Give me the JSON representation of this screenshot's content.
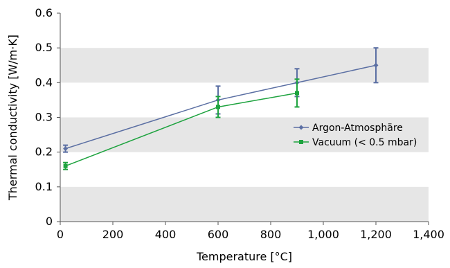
{
  "chart_data": {
    "type": "line",
    "xlabel": "Temperature [°C]",
    "ylabel": "Thermal conductivity [W/m·K]",
    "xlim": [
      0,
      1400
    ],
    "ylim": [
      0,
      0.6
    ],
    "x_ticks": [
      0,
      200,
      400,
      600,
      800,
      1000,
      1200,
      1400
    ],
    "x_tick_labels": [
      "0",
      "200",
      "400",
      "600",
      "800",
      "1,000",
      "1,200",
      "1,400"
    ],
    "y_ticks": [
      0,
      0.1,
      0.2,
      0.3,
      0.4,
      0.5,
      0.6
    ],
    "y_tick_labels": [
      "0",
      "0.1",
      "0.2",
      "0.3",
      "0.4",
      "0.5",
      "0.6"
    ],
    "grid": "alternating horizontal bands",
    "legend_position": "center-right",
    "series": [
      {
        "name": "Argon-Atmosphäre",
        "color": "#5b6fa3",
        "marker": "diamond",
        "x": [
          20,
          600,
          900,
          1200
        ],
        "y": [
          0.21,
          0.35,
          0.4,
          0.45
        ],
        "error": [
          0.01,
          0.04,
          0.04,
          0.05
        ]
      },
      {
        "name": "Vacuum (< 0.5 mbar)",
        "color": "#1ea33f",
        "marker": "square",
        "x": [
          20,
          600,
          900
        ],
        "y": [
          0.16,
          0.33,
          0.37
        ],
        "error": [
          0.01,
          0.03,
          0.04
        ]
      }
    ]
  }
}
